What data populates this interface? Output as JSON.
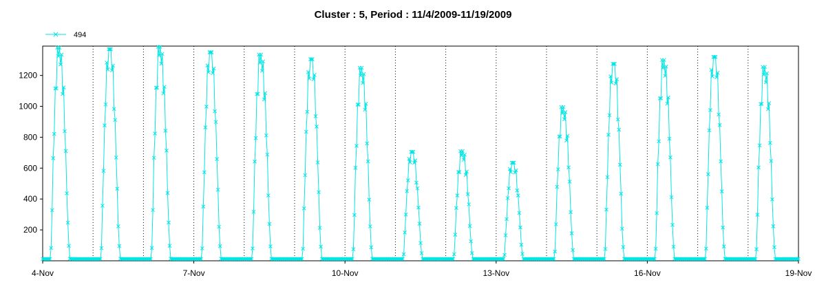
{
  "chart_data": {
    "type": "line",
    "title": "Cluster : 5, Period : 11/4/2009-11/19/2009",
    "xlabel": "",
    "ylabel": "",
    "x_axis": {
      "unit": "day of November 2009",
      "range": [
        4,
        19
      ],
      "tick_values": [
        4,
        7,
        10,
        13,
        16,
        19
      ],
      "tick_labels": [
        "4-Nov",
        "7-Nov",
        "10-Nov",
        "13-Nov",
        "16-Nov",
        "19-Nov"
      ],
      "minor_grid_every_day": true
    },
    "ylim": [
      0,
      1390
    ],
    "y_ticks": [
      200,
      400,
      600,
      800,
      1000,
      1200
    ],
    "grid": "vertical dotted lines at each day",
    "legend": {
      "placement": "top-left"
    },
    "series": [
      {
        "name": "494",
        "color": "#00e5e5",
        "marker": "x",
        "daily_peaks": [
          {
            "day": 4,
            "peak": 1380
          },
          {
            "day": 5,
            "peak": 1370
          },
          {
            "day": 6,
            "peak": 1385
          },
          {
            "day": 7,
            "peak": 1350
          },
          {
            "day": 8,
            "peak": 1335
          },
          {
            "day": 9,
            "peak": 1305
          },
          {
            "day": 10,
            "peak": 1250
          },
          {
            "day": 11,
            "peak": 705
          },
          {
            "day": 12,
            "peak": 710
          },
          {
            "day": 13,
            "peak": 635
          },
          {
            "day": 14,
            "peak": 995
          },
          {
            "day": 15,
            "peak": 1275
          },
          {
            "day": 16,
            "peak": 1300
          },
          {
            "day": 17,
            "peak": 1320
          },
          {
            "day": 18,
            "peak": 1255
          }
        ]
      }
    ]
  }
}
